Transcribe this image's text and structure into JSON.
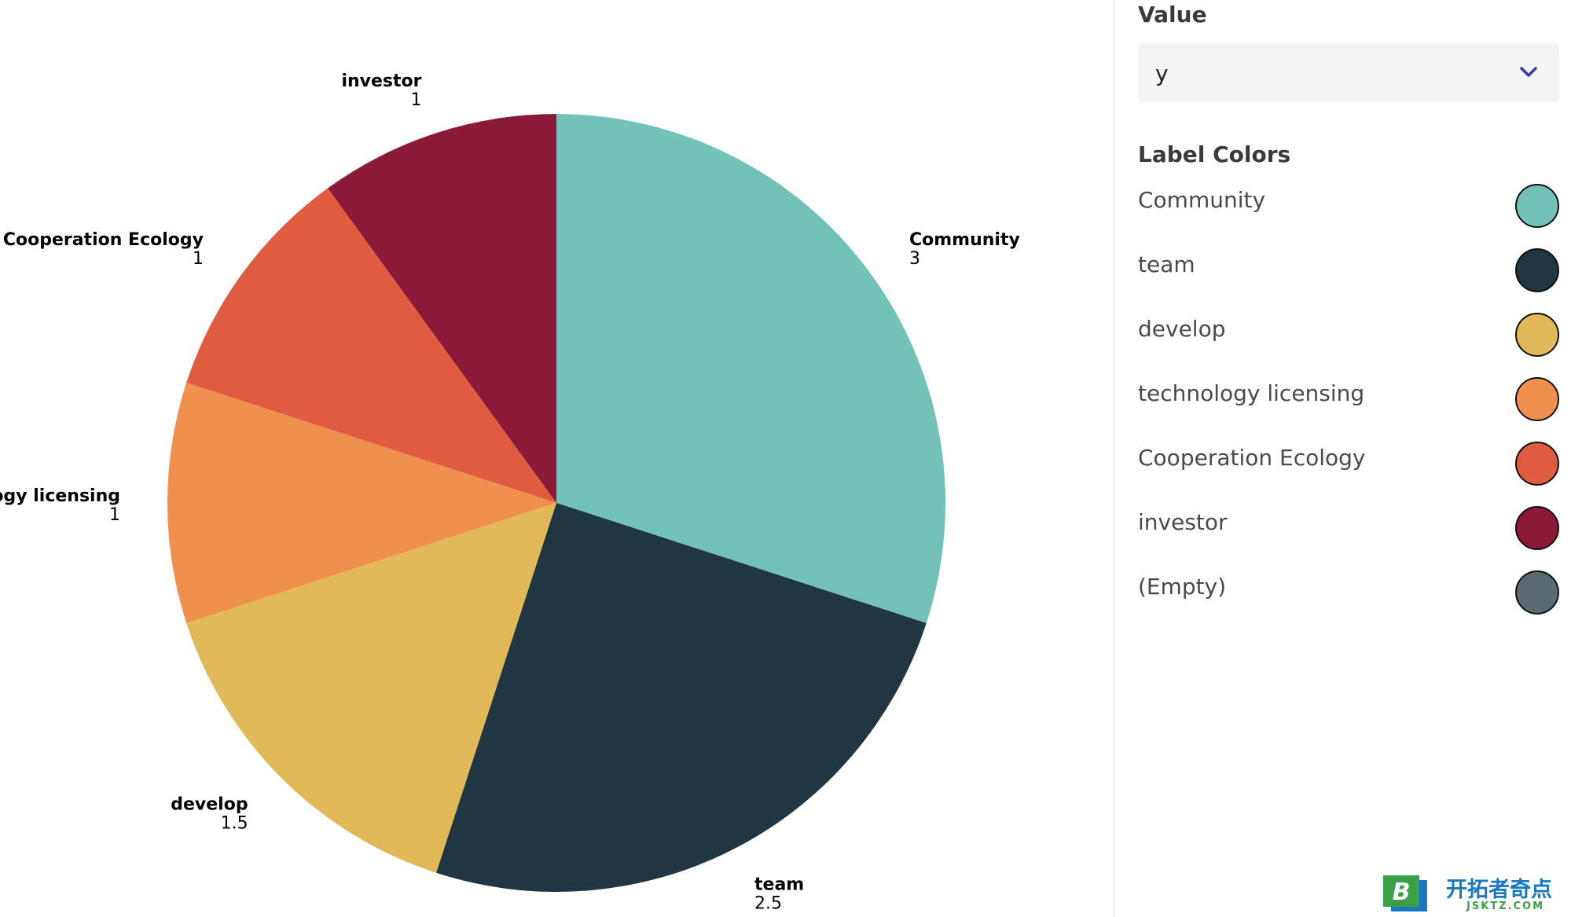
{
  "chart_data": {
    "type": "pie",
    "categories": [
      "Community",
      "team",
      "develop",
      "technology licensing",
      "Cooperation Ecology",
      "investor"
    ],
    "values": [
      3,
      2.5,
      1.5,
      1,
      1,
      1
    ],
    "value_labels": [
      "3",
      "2.5",
      "1.5",
      "1",
      "1",
      "1"
    ],
    "colors": [
      "#72c2b7",
      "#213643",
      "#e2b958",
      "#ef904e",
      "#e05c40",
      "#8b1a38"
    ],
    "start_angle_deg": 0,
    "direction": "clockwise"
  },
  "panel": {
    "value_heading": "Value",
    "value_select": {
      "selected": "y",
      "chevron_icon": "chevron-down-icon",
      "chevron_color": "#3c3caa"
    },
    "label_colors_heading": "Label Colors",
    "label_colors": [
      {
        "label": "Community",
        "color": "#72c2b7"
      },
      {
        "label": "team",
        "color": "#213643"
      },
      {
        "label": "develop",
        "color": "#e2b958"
      },
      {
        "label": "technology licensing",
        "color": "#ef904e"
      },
      {
        "label": "Cooperation Ecology",
        "color": "#e05c40"
      },
      {
        "label": "investor",
        "color": "#8b1a38"
      },
      {
        "label": "(Empty)",
        "color": "#5c6a72"
      }
    ]
  },
  "watermark": {
    "badge_letter": "B",
    "name": "开拓者奇点",
    "domain": "JSKTZ.COM"
  }
}
